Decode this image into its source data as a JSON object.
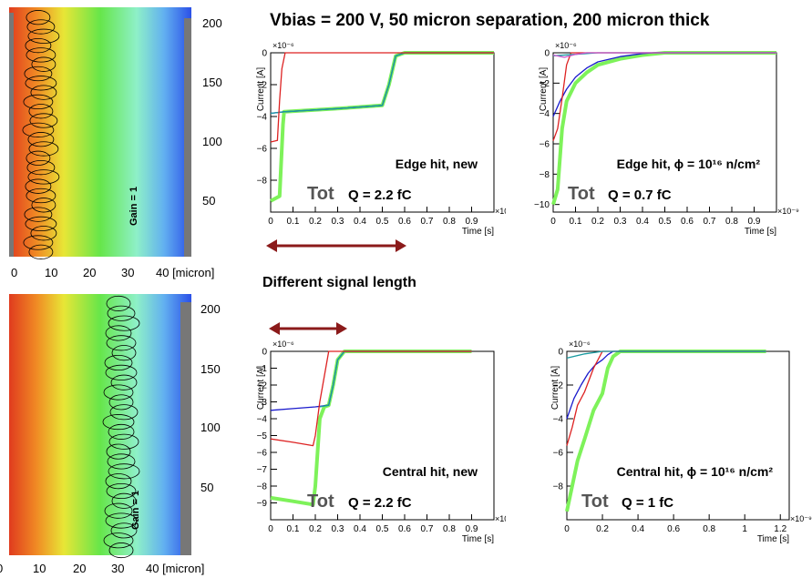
{
  "page_title": "Vbias = 200 V, 50 micron separation, 200 micron thick",
  "subtitle": "Different signal length",
  "sims": [
    {
      "id": "top",
      "y_ticks": [
        "200",
        "150",
        "100",
        "50"
      ],
      "x_ticks": [
        "0",
        "10",
        "20",
        "30",
        "40 [micron]"
      ],
      "gain_label": "Gain = 1",
      "track_center_micron": 6
    },
    {
      "id": "bottom",
      "y_ticks": [
        "200",
        "150",
        "100",
        "50"
      ],
      "x_ticks": [
        "0",
        "10",
        "20",
        "30",
        "40 [micron]"
      ],
      "gain_label": "Gain = 1",
      "track_center_micron": 30
    }
  ],
  "colors": {
    "red": "#dd2222",
    "blue": "#1a1acc",
    "green": "#7ef25a",
    "teal": "#1a9aa0",
    "arrow": "#8b1a1a",
    "axis": "#000000"
  },
  "chart_data": [
    {
      "type": "line",
      "name": "edge-new",
      "ylabel": "Current [A]",
      "xlabel": "Time [s]",
      "y_exponent": "×10⁻⁶",
      "x_exponent": "×10⁻⁹",
      "xlim": [
        0,
        1.0
      ],
      "ylim": [
        -10,
        0
      ],
      "x_ticks": [
        0,
        0.1,
        0.2,
        0.3,
        0.4,
        0.5,
        0.6,
        0.7,
        0.8,
        0.9
      ],
      "y_ticks": [
        0,
        -2,
        -4,
        -6,
        -8
      ],
      "annotation": "Edge hit, new",
      "tot": "Tot",
      "charge": "Q = 2.2 fC",
      "series": [
        {
          "color": "#7ef25a",
          "width": 4,
          "points": [
            [
              0,
              -9.3
            ],
            [
              0.04,
              -9.0
            ],
            [
              0.055,
              -4.5
            ],
            [
              0.06,
              -3.7
            ],
            [
              0.3,
              -3.5
            ],
            [
              0.5,
              -3.3
            ],
            [
              0.53,
              -2.0
            ],
            [
              0.56,
              -0.2
            ],
            [
              0.6,
              0
            ],
            [
              1.0,
              0
            ]
          ]
        },
        {
          "color": "#1a1acc",
          "width": 1.3,
          "points": [
            [
              0,
              -3.8
            ],
            [
              0.06,
              -3.7
            ],
            [
              0.3,
              -3.5
            ],
            [
              0.5,
              -3.3
            ],
            [
              0.53,
              -2.0
            ],
            [
              0.56,
              -0.2
            ],
            [
              0.6,
              0
            ],
            [
              1.0,
              0
            ]
          ]
        },
        {
          "color": "#1a9aa0",
          "width": 1.3,
          "points": [
            [
              0,
              -3.8
            ],
            [
              0.06,
              -3.7
            ],
            [
              0.3,
              -3.5
            ],
            [
              0.5,
              -3.3
            ],
            [
              0.53,
              -2.0
            ],
            [
              0.56,
              -0.2
            ],
            [
              0.6,
              0
            ],
            [
              1.0,
              0
            ]
          ]
        },
        {
          "color": "#dd2222",
          "width": 1.3,
          "points": [
            [
              0,
              -5.6
            ],
            [
              0.03,
              -5.5
            ],
            [
              0.04,
              -3.0
            ],
            [
              0.05,
              -1.0
            ],
            [
              0.065,
              0
            ],
            [
              1.0,
              0
            ]
          ]
        }
      ]
    },
    {
      "type": "line",
      "name": "edge-irradiated",
      "ylabel": "Current [A]",
      "xlabel": "Time [s]",
      "y_exponent": "×10⁻⁶",
      "x_exponent": "×10⁻⁹",
      "xlim": [
        0,
        1.0
      ],
      "ylim": [
        -10.5,
        0
      ],
      "x_ticks": [
        0,
        0.1,
        0.2,
        0.3,
        0.4,
        0.5,
        0.6,
        0.7,
        0.8,
        0.9
      ],
      "y_ticks": [
        0,
        -2,
        -4,
        -6,
        -8,
        -10
      ],
      "annotation": "Edge hit, ϕ = 10¹⁶ n/cm²",
      "tot": "Tot",
      "charge": "Q = 0.7 fC",
      "series": [
        {
          "color": "#7ef25a",
          "width": 4,
          "points": [
            [
              0,
              -10
            ],
            [
              0.02,
              -9
            ],
            [
              0.04,
              -5
            ],
            [
              0.06,
              -3.2
            ],
            [
              0.1,
              -2.0
            ],
            [
              0.15,
              -1.3
            ],
            [
              0.2,
              -0.8
            ],
            [
              0.3,
              -0.4
            ],
            [
              0.4,
              -0.15
            ],
            [
              0.5,
              0
            ],
            [
              1.0,
              0
            ]
          ]
        },
        {
          "color": "#1a1acc",
          "width": 1.3,
          "points": [
            [
              0,
              -4.2
            ],
            [
              0.03,
              -3.2
            ],
            [
              0.06,
              -2.4
            ],
            [
              0.1,
              -1.6
            ],
            [
              0.15,
              -1.0
            ],
            [
              0.2,
              -0.6
            ],
            [
              0.3,
              -0.25
            ],
            [
              0.4,
              -0.05
            ],
            [
              0.45,
              0
            ],
            [
              1.0,
              0
            ]
          ]
        },
        {
          "color": "#dd2222",
          "width": 1.3,
          "points": [
            [
              0,
              -5.8
            ],
            [
              0.02,
              -5.0
            ],
            [
              0.04,
              -3.0
            ],
            [
              0.06,
              -0.8
            ],
            [
              0.08,
              0
            ],
            [
              1.0,
              0
            ]
          ]
        },
        {
          "color": "#1a9aa0",
          "width": 1.3,
          "points": [
            [
              0,
              -0.2
            ],
            [
              0.1,
              -0.1
            ],
            [
              0.2,
              0
            ],
            [
              1.0,
              0
            ]
          ]
        },
        {
          "color": "#cc55cc",
          "width": 1.3,
          "points": [
            [
              0,
              -0.15
            ],
            [
              0.05,
              -0.3
            ],
            [
              0.1,
              -0.1
            ],
            [
              0.15,
              0
            ],
            [
              1.0,
              0
            ]
          ]
        }
      ]
    },
    {
      "type": "line",
      "name": "central-new",
      "ylabel": "Current [A]",
      "xlabel": "Time [s]",
      "y_exponent": "×10⁻⁶",
      "x_exponent": "×10⁻⁹",
      "xlim": [
        0,
        1.0
      ],
      "ylim": [
        -10,
        0
      ],
      "x_ticks": [
        0,
        0.1,
        0.2,
        0.3,
        0.4,
        0.5,
        0.6,
        0.7,
        0.8,
        0.9
      ],
      "y_ticks": [
        0,
        -1,
        -2,
        -3,
        -4,
        -5,
        -6,
        -7,
        -8,
        -9
      ],
      "annotation": "Central hit, new",
      "tot": "Tot",
      "charge": "Q = 2.2 fC",
      "series": [
        {
          "color": "#7ef25a",
          "width": 4,
          "points": [
            [
              0,
              -8.7
            ],
            [
              0.1,
              -8.9
            ],
            [
              0.19,
              -9.1
            ],
            [
              0.2,
              -8.0
            ],
            [
              0.22,
              -4.0
            ],
            [
              0.24,
              -3.3
            ],
            [
              0.26,
              -3.2
            ],
            [
              0.28,
              -2.0
            ],
            [
              0.3,
              -0.5
            ],
            [
              0.33,
              0
            ],
            [
              0.9,
              0
            ]
          ]
        },
        {
          "color": "#1a1acc",
          "width": 1.3,
          "points": [
            [
              0,
              -3.5
            ],
            [
              0.1,
              -3.4
            ],
            [
              0.2,
              -3.3
            ],
            [
              0.26,
              -3.2
            ],
            [
              0.28,
              -2.0
            ],
            [
              0.3,
              -0.5
            ],
            [
              0.33,
              0
            ],
            [
              0.9,
              0
            ]
          ]
        },
        {
          "color": "#1a9aa0",
          "width": 1.3,
          "points": [
            [
              0.22,
              -3.3
            ],
            [
              0.26,
              -3.2
            ],
            [
              0.28,
              -2.0
            ],
            [
              0.3,
              -0.5
            ],
            [
              0.33,
              0
            ],
            [
              0.9,
              0
            ]
          ]
        },
        {
          "color": "#dd2222",
          "width": 1.3,
          "points": [
            [
              0,
              -5.2
            ],
            [
              0.1,
              -5.4
            ],
            [
              0.19,
              -5.6
            ],
            [
              0.2,
              -5.0
            ],
            [
              0.22,
              -3.0
            ],
            [
              0.24,
              -1.5
            ],
            [
              0.26,
              0
            ],
            [
              0.9,
              0
            ]
          ]
        }
      ]
    },
    {
      "type": "line",
      "name": "central-irradiated",
      "ylabel": "Current [A]",
      "xlabel": "Time [s]",
      "y_exponent": "×10⁻⁶",
      "x_exponent": "×10⁻⁹",
      "xlim": [
        0,
        1.25
      ],
      "ylim": [
        -10,
        0
      ],
      "x_ticks": [
        0,
        0.2,
        0.4,
        0.6,
        0.8,
        1.0,
        1.2
      ],
      "x_tick_labels": [
        "0",
        "0.2",
        "0.4",
        "0.6",
        "0.8",
        "1",
        "1.2"
      ],
      "y_ticks": [
        0,
        -2,
        -4,
        -6,
        -8
      ],
      "annotation": "Central hit, ϕ = 10¹⁶ n/cm²",
      "tot": "Tot",
      "charge": "Q = 1 fC",
      "series": [
        {
          "color": "#7ef25a",
          "width": 4,
          "points": [
            [
              0,
              -9.5
            ],
            [
              0.02,
              -8.5
            ],
            [
              0.06,
              -6.5
            ],
            [
              0.1,
              -5.2
            ],
            [
              0.15,
              -3.5
            ],
            [
              0.2,
              -2.5
            ],
            [
              0.23,
              -1.0
            ],
            [
              0.26,
              -0.3
            ],
            [
              0.3,
              0
            ],
            [
              1.12,
              0
            ]
          ]
        },
        {
          "color": "#1a1acc",
          "width": 1.3,
          "points": [
            [
              0,
              -4.0
            ],
            [
              0.04,
              -2.8
            ],
            [
              0.08,
              -2.0
            ],
            [
              0.12,
              -1.3
            ],
            [
              0.16,
              -0.8
            ],
            [
              0.2,
              -0.5
            ],
            [
              0.23,
              -0.2
            ],
            [
              0.26,
              0
            ],
            [
              1.12,
              0
            ]
          ]
        },
        {
          "color": "#dd2222",
          "width": 1.3,
          "points": [
            [
              0,
              -5.6
            ],
            [
              0.03,
              -4.5
            ],
            [
              0.06,
              -3.2
            ],
            [
              0.1,
              -2.4
            ],
            [
              0.15,
              -1.0
            ],
            [
              0.18,
              -0.4
            ],
            [
              0.2,
              0
            ],
            [
              1.12,
              0
            ]
          ]
        },
        {
          "color": "#1a9aa0",
          "width": 1.3,
          "points": [
            [
              0,
              -0.4
            ],
            [
              0.1,
              -0.15
            ],
            [
              0.2,
              0
            ],
            [
              1.12,
              0
            ]
          ]
        }
      ]
    }
  ]
}
